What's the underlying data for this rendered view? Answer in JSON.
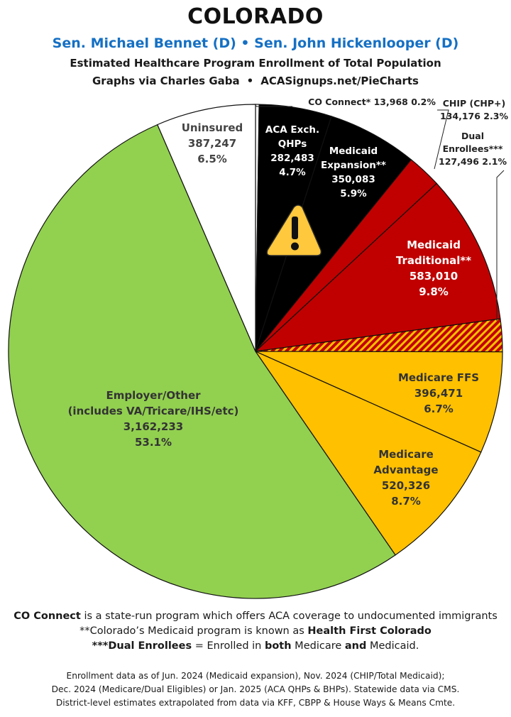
{
  "header": {
    "state": "COLORADO",
    "senators": "Sen. Michael Bennet (D) • Sen. John Hickenlooper (D)",
    "subtitle": "Estimated Healthcare Program Enrollment of Total Population",
    "credit": "Graphs via Charles Gaba",
    "separator": "•",
    "website": "ACASignups.net/PieCharts"
  },
  "chart_data": {
    "type": "pie",
    "slices": [
      {
        "label": [
          "CO Connect* 13,968 0.2%"
        ],
        "value": 13968,
        "percent": 0.2,
        "color": "#ffffff",
        "label_color": "#222222"
      },
      {
        "label": [
          "ACA Exch.",
          "QHPs",
          "282,483",
          "4.7%"
        ],
        "value": 282483,
        "percent": 4.7,
        "color": "#000000",
        "label_color": "#ffffff"
      },
      {
        "label": [
          "Medicaid",
          "Expansion**",
          "350,083",
          "5.9%"
        ],
        "value": 350083,
        "percent": 5.9,
        "color": "#000000",
        "label_color": "#ffffff"
      },
      {
        "label": [
          "CHIP (CHP+)",
          "134,176 2.3%"
        ],
        "value": 134176,
        "percent": 2.3,
        "color": "#c00000",
        "label_color": "#222222"
      },
      {
        "label": [
          "Medicaid",
          "Traditional**",
          "583,010",
          "9.8%"
        ],
        "value": 583010,
        "percent": 9.8,
        "color": "#c00000",
        "label_color": "#ffffff"
      },
      {
        "label": [
          "Dual",
          "Enrollees***",
          "127,496 2.1%"
        ],
        "value": 127496,
        "percent": 2.1,
        "color": "hatch",
        "label_color": "#222222"
      },
      {
        "label": [
          "Medicare FFS",
          "396,471",
          "6.7%"
        ],
        "value": 396471,
        "percent": 6.7,
        "color": "#ffc000",
        "label_color": "#333333"
      },
      {
        "label": [
          "Medicare",
          "Advantage",
          "520,326",
          "8.7%"
        ],
        "value": 520326,
        "percent": 8.7,
        "color": "#ffc000",
        "label_color": "#333333"
      },
      {
        "label": [
          "Employer/Other",
          "(includes VA/Tricare/IHS/etc)",
          "3,162,233",
          "53.1%"
        ],
        "value": 3162233,
        "percent": 53.1,
        "color": "#92d050",
        "label_color": "#333333"
      },
      {
        "label": [
          "Uninsured",
          "387,247",
          "6.5%"
        ],
        "value": 387247,
        "percent": 6.5,
        "color": "#ffffff",
        "label_color": "#444444"
      }
    ],
    "warning_icon": "warning-triangle-icon",
    "hatch_colors": [
      "#c00000",
      "#ffc000"
    ]
  },
  "notes": [
    [
      {
        "t": "CO Connect",
        "b": true
      },
      {
        "t": " is a state-run program which offers ACA coverage to undocumented immigrants",
        "b": false
      }
    ],
    [
      {
        "t": "**Colorado’s Medicaid program is known as ",
        "b": false
      },
      {
        "t": "Health First Colorado",
        "b": true
      }
    ],
    [
      {
        "t": "***Dual Enrollees",
        "b": true
      },
      {
        "t": " = Enrolled in ",
        "b": false
      },
      {
        "t": "both",
        "b": true
      },
      {
        "t": " Medicare ",
        "b": false
      },
      {
        "t": "and",
        "b": true
      },
      {
        "t": " Medicaid.",
        "b": false
      }
    ]
  ],
  "source": [
    "Enrollment data as of Jun. 2024 (Medicaid expansion), Nov. 2024 (CHIP/Total Medicaid);",
    "Dec. 2024 (Medicare/Dual Eligibles) or Jan. 2025 (ACA QHPs & BHPs). Statewide data via CMS.",
    "District-level estimates extrapolated from data via KFF, CBPP & House Ways & Means Cmte."
  ]
}
